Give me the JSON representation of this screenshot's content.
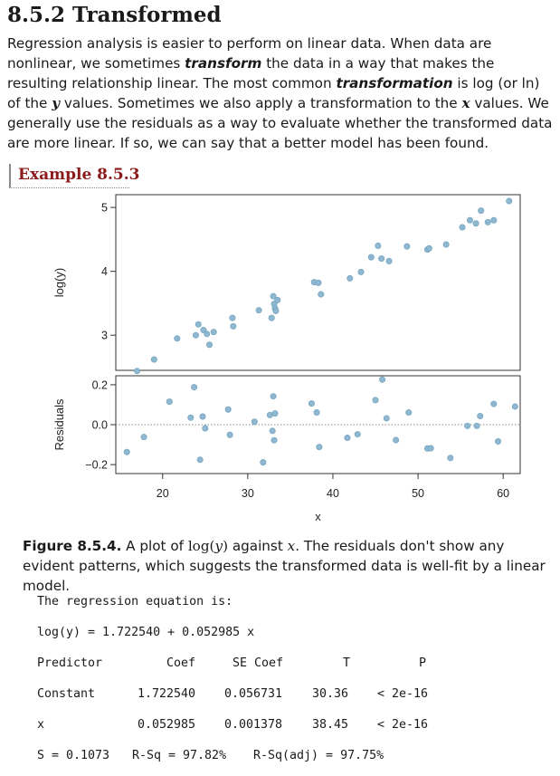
{
  "section": {
    "title": "8.5.2 Transformed",
    "intro": {
      "t1": "Regression analysis is easier to perform on linear data. When data are nonlinear, we sometimes ",
      "em1": "transform",
      "t2": " the data in a way that makes the resulting relationship linear. The most common ",
      "em2": "transformation",
      "t3": " is log (or ln) of the ",
      "var_y": "y",
      "t4": " values. Sometimes we also apply a transformation to the ",
      "var_x": "x",
      "t5": " values. We generally use the residuals as a way to evaluate whether the transformed data are more linear. If so, we can say that a better model has been found."
    }
  },
  "example": {
    "title": "Example 8.5.3"
  },
  "colors": {
    "point": "#8fb8d0",
    "point_stroke": "#6c9fbd",
    "title_red": "#8b1a1a",
    "axis": "#333333"
  },
  "chart_data": [
    {
      "type": "scatter",
      "title": "",
      "xlabel": "x",
      "ylabel": "log(y)",
      "xlim": [
        14.5,
        62
      ],
      "ylim": [
        2.45,
        5.2
      ],
      "xticks": [
        20,
        30,
        40,
        50,
        60
      ],
      "yticks": [
        3,
        4,
        5
      ],
      "x": [
        17.0,
        19.0,
        21.7,
        23.9,
        24.2,
        24.8,
        25.2,
        25.5,
        26.0,
        28.2,
        28.3,
        31.3,
        32.8,
        33.0,
        33.1,
        33.2,
        33.3,
        33.5,
        37.8,
        38.3,
        38.6,
        42.0,
        43.3,
        44.5,
        45.3,
        45.7,
        46.6,
        48.7,
        51.1,
        51.3,
        53.3,
        55.2,
        56.1,
        56.8,
        57.4,
        58.2,
        58.9,
        60.7
      ],
      "y": [
        2.44,
        2.62,
        2.95,
        3.0,
        3.17,
        3.08,
        3.02,
        2.85,
        3.05,
        3.27,
        3.14,
        3.39,
        3.27,
        3.61,
        3.49,
        3.42,
        3.38,
        3.55,
        3.83,
        3.82,
        3.64,
        3.89,
        3.99,
        4.22,
        4.4,
        4.2,
        4.16,
        4.39,
        4.34,
        4.36,
        4.42,
        4.69,
        4.8,
        4.75,
        4.95,
        4.77,
        4.8,
        5.1
      ]
    },
    {
      "type": "scatter",
      "title": "",
      "xlabel": "x",
      "ylabel": "Residuals",
      "xlim": [
        14.5,
        62
      ],
      "ylim": [
        -0.245,
        0.245
      ],
      "xticks": [
        20,
        30,
        40,
        50,
        60
      ],
      "yticks": [
        0.2,
        0.0,
        -0.2
      ],
      "ytick_labels": [
        "0.2",
        "0.0",
        "−0.2"
      ],
      "reference_line": 0.0,
      "x": [
        15.8,
        17.8,
        20.8,
        23.3,
        23.7,
        24.7,
        24.4,
        25.0,
        27.7,
        27.9,
        30.8,
        31.8,
        32.6,
        32.9,
        33.0,
        33.1,
        33.2,
        37.5,
        38.1,
        38.4,
        41.7,
        42.9,
        45.0,
        45.8,
        46.3,
        47.4,
        48.9,
        51.1,
        51.5,
        53.8,
        55.8,
        56.9,
        57.3,
        58.9,
        59.4,
        61.4
      ],
      "y": [
        -0.137,
        -0.062,
        0.115,
        0.035,
        0.188,
        0.041,
        -0.176,
        -0.018,
        0.076,
        -0.051,
        0.015,
        -0.189,
        0.048,
        -0.031,
        0.142,
        -0.078,
        0.056,
        0.106,
        0.061,
        -0.112,
        -0.066,
        -0.048,
        0.123,
        0.226,
        0.032,
        -0.077,
        0.061,
        -0.119,
        -0.118,
        -0.167,
        -0.006,
        -0.006,
        0.043,
        0.104,
        -0.084,
        0.091
      ]
    }
  ],
  "figure": {
    "label": "Figure 8.5.4.",
    "c1": " A plot of ",
    "m1_pre": "log(",
    "m1_var": "y",
    "m1_post": ")",
    "c2": " against ",
    "m2": "x",
    "c3": ". The residuals don't show any evident patterns, which suggests the transformed data is well-fit by a linear model."
  },
  "regression": {
    "intro": "The regression equation is:",
    "equation": "log(y) = 1.722540 + 0.052985 x",
    "headers": {
      "predictor": "Predictor",
      "coef": "Coef",
      "se": "SE Coef",
      "t": "T",
      "p": "P"
    },
    "rows": [
      {
        "predictor": "Constant",
        "coef": "1.722540",
        "se": "0.056731",
        "t": "30.36",
        "p": "< 2e-16"
      },
      {
        "predictor": "x",
        "coef": "0.052985",
        "se": "0.001378",
        "t": "38.45",
        "p": "< 2e-16"
      }
    ],
    "summary": {
      "s": "S = 0.1073",
      "rsq": "R-Sq = 97.82%",
      "rsq_adj": "R-Sq(adj) = 97.75%"
    }
  }
}
